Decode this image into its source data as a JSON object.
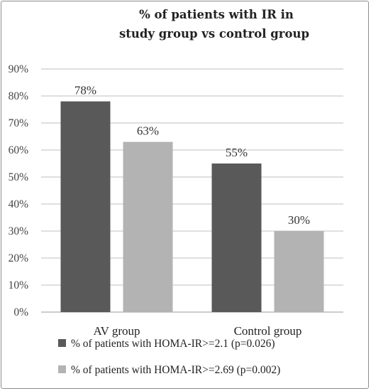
{
  "chart_data": {
    "type": "bar",
    "title": "% of patients with IR in study group vs control group",
    "title_lines": [
      "% of patients with IR in",
      "study group vs control group"
    ],
    "categories": [
      "AV group",
      "Control group"
    ],
    "series": [
      {
        "name": "% of patients with HOMA-IR>=2.1 (p=0.026)",
        "values": [
          78,
          55
        ],
        "labels": [
          "78%",
          "55%"
        ],
        "color": "#595959"
      },
      {
        "name": "% of patients with HOMA-IR>=2.69 (p=0.002)",
        "values": [
          63,
          30
        ],
        "labels": [
          "63%",
          "30%"
        ],
        "color": "#b3b3b3"
      }
    ],
    "y_ticks": [
      "0%",
      "10%",
      "20%",
      "30%",
      "40%",
      "50%",
      "60%",
      "70%",
      "80%",
      "90%"
    ],
    "ylim": [
      0,
      90
    ],
    "grid": true,
    "legend_position": "bottom"
  },
  "colors": {
    "gridline": "#bfbfbf",
    "axis": "#9a9a9a"
  }
}
